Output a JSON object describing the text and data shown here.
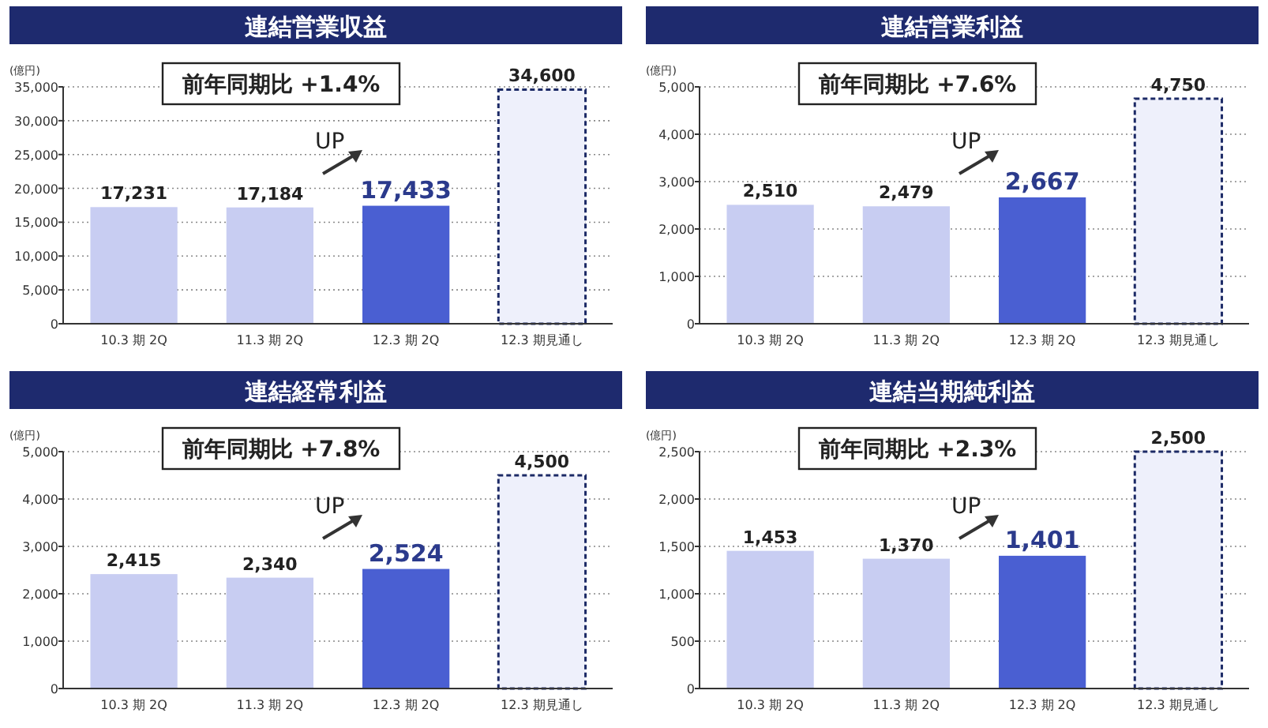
{
  "chart_data": [
    {
      "type": "bar",
      "title": "連結営業収益",
      "ylabel": "(億円)",
      "categories": [
        "10.3 期 2Q",
        "11.3 期 2Q",
        "12.3 期 2Q",
        "12.3 期見通し"
      ],
      "values": [
        17231,
        17184,
        17433,
        34600
      ],
      "value_labels": [
        "17,231",
        "17,184",
        "17,433",
        "34,600"
      ],
      "colors": [
        "#c8cdf2",
        "#c8cdf2",
        "#4a5fd2",
        "#eef0fb"
      ],
      "ylim": [
        0,
        35000
      ],
      "yticks": [
        {
          "value": 0,
          "label": "0"
        },
        {
          "value": 5000,
          "label": "5,000"
        },
        {
          "value": 10000,
          "label": "10,000"
        },
        {
          "value": 15000,
          "label": "15,000"
        },
        {
          "value": 20000,
          "label": "20,000"
        },
        {
          "value": 25000,
          "label": "25,000"
        },
        {
          "value": 30000,
          "label": "30,000"
        },
        {
          "value": 35000,
          "label": "35,000"
        }
      ],
      "grid": "y",
      "annotations": [
        "前年同期比 +1.4%",
        "UP"
      ]
    },
    {
      "type": "bar",
      "title": "連結営業利益",
      "ylabel": "(億円)",
      "categories": [
        "10.3 期 2Q",
        "11.3 期 2Q",
        "12.3 期 2Q",
        "12.3 期見通し"
      ],
      "values": [
        2510,
        2479,
        2667,
        4750
      ],
      "value_labels": [
        "2,510",
        "2,479",
        "2,667",
        "4,750"
      ],
      "colors": [
        "#c8cdf2",
        "#c8cdf2",
        "#4a5fd2",
        "#eef0fb"
      ],
      "ylim": [
        0,
        5000
      ],
      "yticks": [
        {
          "value": 0,
          "label": "0"
        },
        {
          "value": 1000,
          "label": "1,000"
        },
        {
          "value": 2000,
          "label": "2,000"
        },
        {
          "value": 3000,
          "label": "3,000"
        },
        {
          "value": 4000,
          "label": "4,000"
        },
        {
          "value": 5000,
          "label": "5,000"
        }
      ],
      "grid": "y",
      "annotations": [
        "前年同期比 +7.6%",
        "UP"
      ]
    },
    {
      "type": "bar",
      "title": "連結経常利益",
      "ylabel": "(億円)",
      "categories": [
        "10.3 期 2Q",
        "11.3 期 2Q",
        "12.3 期 2Q",
        "12.3 期見通し"
      ],
      "values": [
        2415,
        2340,
        2524,
        4500
      ],
      "value_labels": [
        "2,415",
        "2,340",
        "2,524",
        "4,500"
      ],
      "colors": [
        "#c8cdf2",
        "#c8cdf2",
        "#4a5fd2",
        "#eef0fb"
      ],
      "ylim": [
        0,
        5000
      ],
      "yticks": [
        {
          "value": 0,
          "label": "0"
        },
        {
          "value": 1000,
          "label": "1,000"
        },
        {
          "value": 2000,
          "label": "2,000"
        },
        {
          "value": 3000,
          "label": "3,000"
        },
        {
          "value": 4000,
          "label": "4,000"
        },
        {
          "value": 5000,
          "label": "5,000"
        }
      ],
      "grid": "y",
      "annotations": [
        "前年同期比 +7.8%",
        "UP"
      ]
    },
    {
      "type": "bar",
      "title": "連結当期純利益",
      "ylabel": "(億円)",
      "categories": [
        "10.3 期 2Q",
        "11.3 期 2Q",
        "12.3 期 2Q",
        "12.3 期見通し"
      ],
      "values": [
        1453,
        1370,
        1401,
        2500
      ],
      "value_labels": [
        "1,453",
        "1,370",
        "1,401",
        "2,500"
      ],
      "colors": [
        "#c8cdf2",
        "#c8cdf2",
        "#4a5fd2",
        "#eef0fb"
      ],
      "ylim": [
        0,
        2500
      ],
      "yticks": [
        {
          "value": 0,
          "label": "0"
        },
        500,
        {
          "value": 1000,
          "label": "1,000"
        },
        {
          "value": 1500,
          "label": "1,500"
        },
        {
          "value": 2000,
          "label": "2,000"
        },
        {
          "value": 2500,
          "label": "2,500"
        }
      ],
      "grid": "y",
      "annotations": [
        "前年同期比 +2.3%",
        "UP"
      ]
    }
  ]
}
